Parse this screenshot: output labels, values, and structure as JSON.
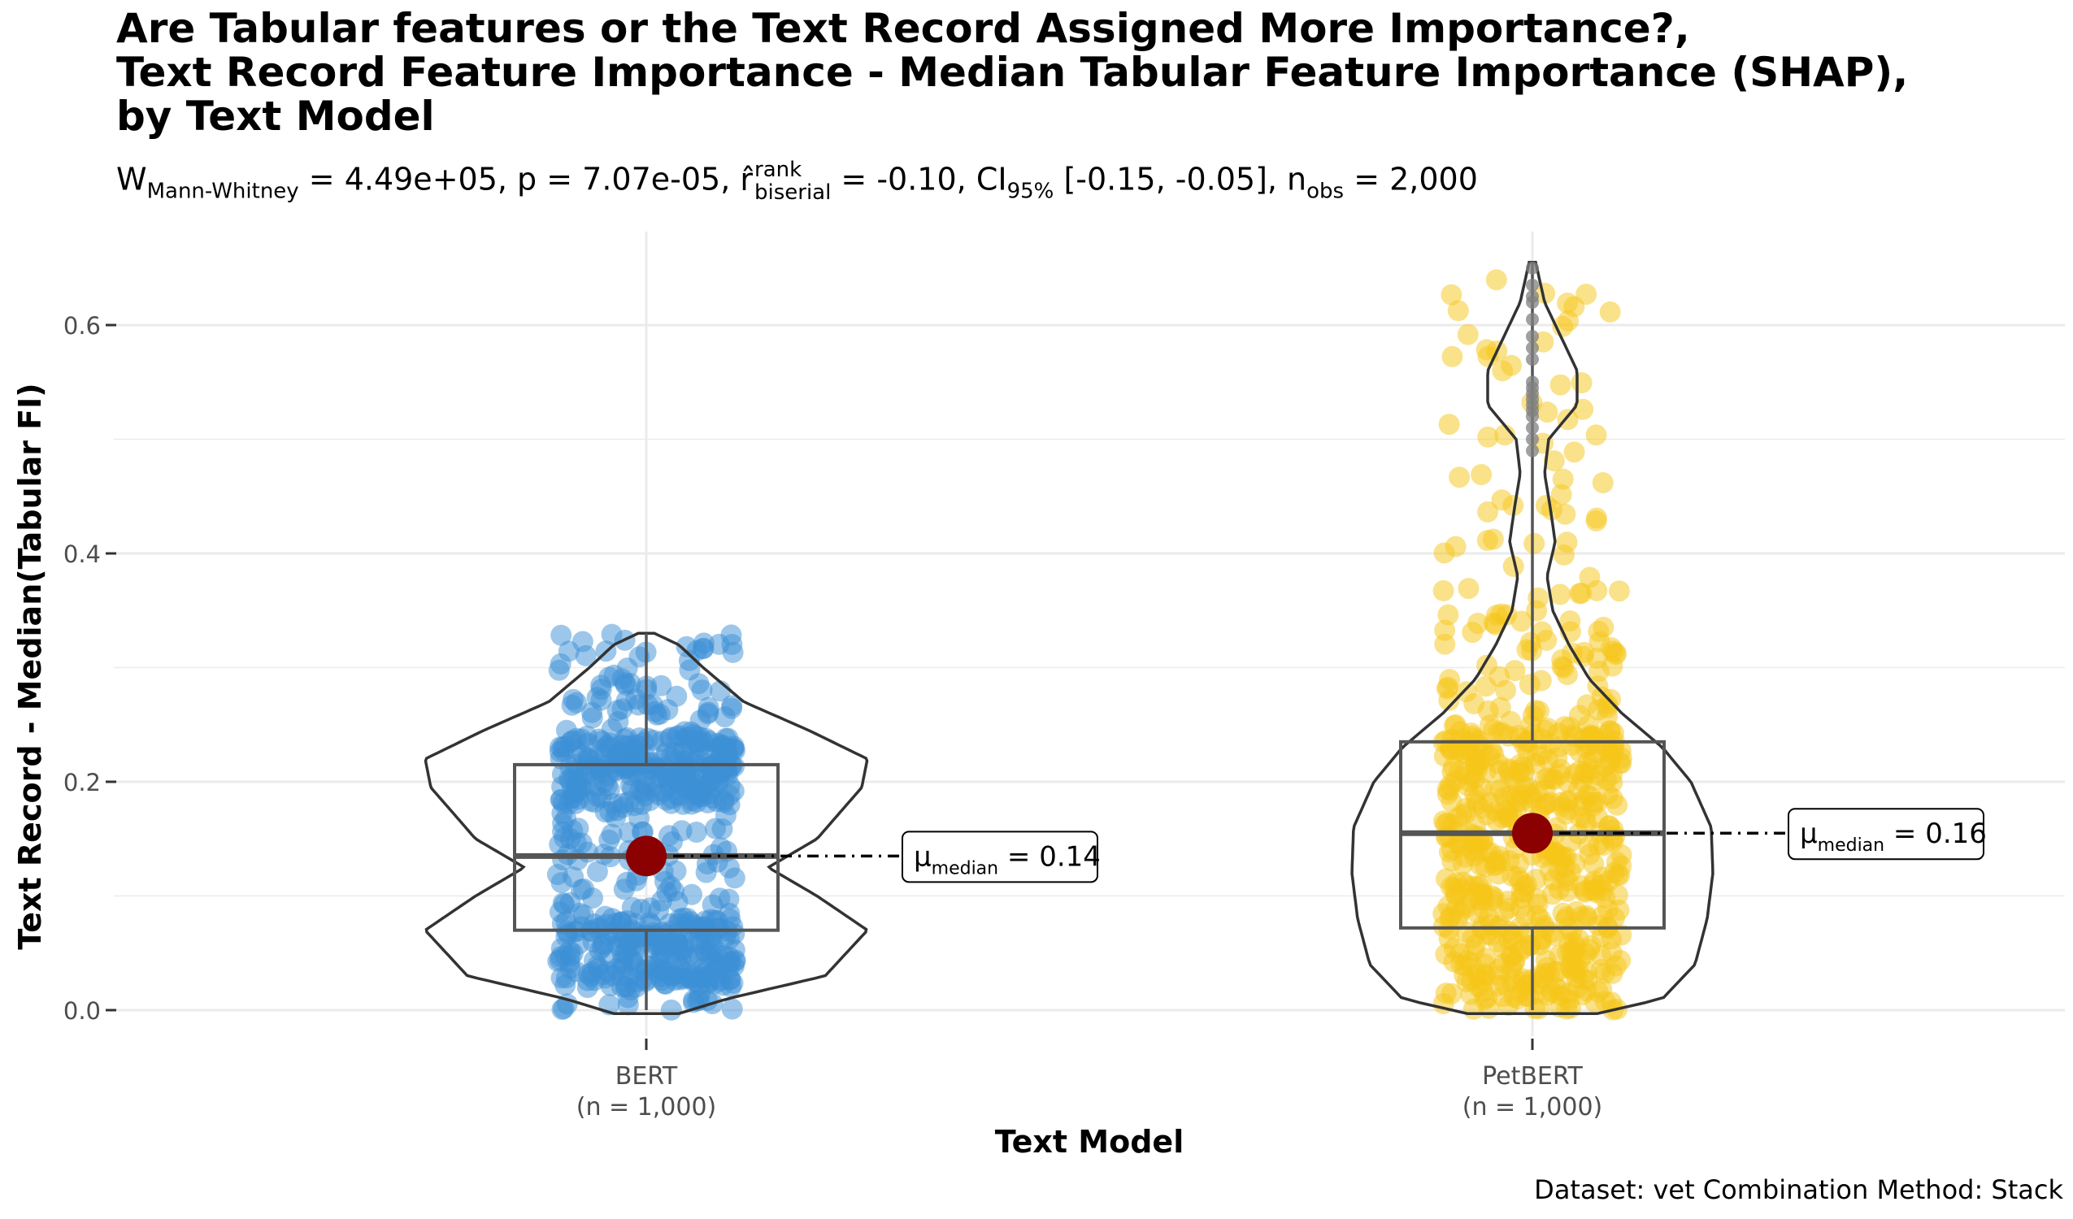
{
  "title_lines": [
    "Are Tabular features or the Text Record Assigned More Importance?,",
    "Text Record Feature Importance - Median Tabular Feature Importance (SHAP),",
    "by Text Model"
  ],
  "subtitle": {
    "W_sym": "W",
    "W_sub": "Mann-Whitney",
    "W_val": " = 4.49e+05, p = 7.07e-05, ",
    "r_sym": "r̂",
    "r_sup": "rank",
    "r_sub": "biserial",
    "r_val": " = -0.10, CI",
    "ci_sub": "95%",
    "ci_val": " [-0.15, -0.05], n",
    "n_sub": "obs",
    "n_val": " = 2,000"
  },
  "caption": "Dataset: vet Combination Method:  Stack",
  "colors": {
    "bert": "#3B8FD6",
    "petbert": "#F5C518",
    "median_point": "#8B0000",
    "outlier": "#808080",
    "grid": "#EBEBEB"
  },
  "chart_data": {
    "type": "violin-box-jitter",
    "xlabel": "Text Model",
    "ylabel": "Text Record - Median(Tabular FI)",
    "ylim": [
      -0.02,
      0.68
    ],
    "yticks": [
      0.0,
      0.2,
      0.4,
      0.6
    ],
    "ytick_labels": [
      "0.0",
      "0.2",
      "0.4",
      "0.6"
    ],
    "grid": true,
    "groups": [
      {
        "name": "BERT",
        "n_label": "(n = 1,000)",
        "n": 1000,
        "min": 0.0,
        "q1": 0.07,
        "median": 0.135,
        "q3": 0.215,
        "max": 0.33,
        "median_label": "μ",
        "median_label_sub": "median",
        "median_label_value": " = 0.14"
      },
      {
        "name": "PetBERT",
        "n_label": "(n = 1,000)",
        "n": 1000,
        "min": 0.0,
        "q1": 0.072,
        "median": 0.155,
        "q3": 0.235,
        "max": 0.655,
        "median_label": "μ",
        "median_label_sub": "median",
        "median_label_value": " = 0.16"
      }
    ]
  }
}
